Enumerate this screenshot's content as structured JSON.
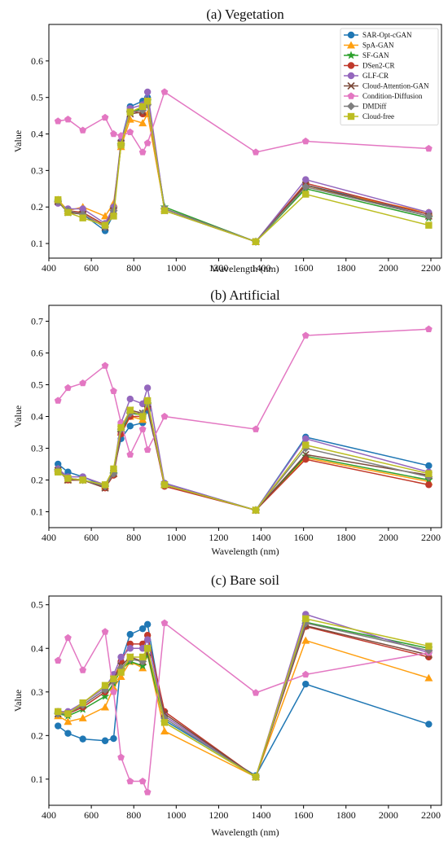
{
  "legend": [
    {
      "name": "SAR-Opt-cGAN",
      "color": "#1f77b4",
      "marker": "circle"
    },
    {
      "name": "SpA-GAN",
      "color": "#ff9f10",
      "marker": "triangle"
    },
    {
      "name": "SF-GAN",
      "color": "#2ca02c",
      "marker": "star"
    },
    {
      "name": "DSen2-CR",
      "color": "#c0392b",
      "marker": "circle"
    },
    {
      "name": "GLF-CR",
      "color": "#9467bd",
      "marker": "circle"
    },
    {
      "name": "Cloud-Attention-GAN",
      "color": "#7b4a3a",
      "marker": "x"
    },
    {
      "name": "Condition-Diffusion",
      "color": "#e377c2",
      "marker": "pentagon"
    },
    {
      "name": "DMDiff",
      "color": "#7f7f7f",
      "marker": "diamond"
    },
    {
      "name": "Cloud-free",
      "color": "#bcbd22",
      "marker": "square"
    }
  ],
  "chart_data": [
    {
      "type": "line",
      "title": "(a) Vegetation",
      "xlabel": "Wavelength (nm)",
      "ylabel": "Value",
      "xlim": [
        400,
        2250
      ],
      "ylim": [
        0.06,
        0.7
      ],
      "xticks": [
        400,
        600,
        800,
        1000,
        1200,
        1400,
        1600,
        1800,
        2000,
        2200
      ],
      "yticks": [
        0.1,
        0.2,
        0.3,
        0.4,
        0.5,
        0.6
      ],
      "ytick_labels": [
        "0.1",
        "0.2",
        "0.3",
        "0.4",
        "0.5",
        "0.6"
      ],
      "legend_position": "upper right",
      "x": [
        443,
        490,
        560,
        665,
        705,
        740,
        783,
        842,
        865,
        945,
        1375,
        1610,
        2190
      ],
      "series": [
        {
          "name": "SAR-Opt-cGAN",
          "values": [
            0.215,
            0.19,
            0.18,
            0.135,
            0.18,
            0.38,
            0.475,
            0.49,
            0.5,
            0.195,
            0.105,
            0.26,
            0.18
          ]
        },
        {
          "name": "SpA-GAN",
          "values": [
            0.22,
            0.19,
            0.2,
            0.175,
            0.21,
            0.365,
            0.44,
            0.43,
            0.455,
            0.195,
            0.105,
            0.255,
            0.185
          ]
        },
        {
          "name": "SF-GAN",
          "values": [
            0.215,
            0.185,
            0.185,
            0.15,
            0.195,
            0.37,
            0.46,
            0.47,
            0.49,
            0.2,
            0.105,
            0.25,
            0.17
          ]
        },
        {
          "name": "DSen2-CR",
          "values": [
            0.215,
            0.19,
            0.185,
            0.15,
            0.195,
            0.375,
            0.465,
            0.455,
            0.48,
            0.195,
            0.105,
            0.265,
            0.18
          ]
        },
        {
          "name": "GLF-CR",
          "values": [
            0.21,
            0.195,
            0.195,
            0.155,
            0.2,
            0.38,
            0.47,
            0.48,
            0.515,
            0.195,
            0.105,
            0.275,
            0.185
          ]
        },
        {
          "name": "Cloud-Attention-GAN",
          "values": [
            0.215,
            0.185,
            0.18,
            0.145,
            0.19,
            0.375,
            0.455,
            0.46,
            0.49,
            0.19,
            0.105,
            0.26,
            0.175
          ]
        },
        {
          "name": "Condition-Diffusion",
          "values": [
            0.435,
            0.44,
            0.41,
            0.445,
            0.4,
            0.395,
            0.405,
            0.35,
            0.375,
            0.515,
            0.35,
            0.38,
            0.36
          ]
        },
        {
          "name": "DMDiff",
          "values": [
            0.215,
            0.19,
            0.18,
            0.145,
            0.19,
            0.37,
            0.46,
            0.465,
            0.48,
            0.195,
            0.105,
            0.255,
            0.175
          ]
        },
        {
          "name": "Cloud-free",
          "values": [
            0.22,
            0.185,
            0.17,
            0.15,
            0.175,
            0.37,
            0.46,
            0.475,
            0.49,
            0.19,
            0.105,
            0.235,
            0.15
          ]
        }
      ]
    },
    {
      "type": "line",
      "title": "(b) Artificial",
      "xlabel": "Wavelength (nm)",
      "ylabel": "Value",
      "xlim": [
        400,
        2250
      ],
      "ylim": [
        0.05,
        0.75
      ],
      "xticks": [
        400,
        600,
        800,
        1000,
        1200,
        1400,
        1600,
        1800,
        2000,
        2200
      ],
      "yticks": [
        0.1,
        0.2,
        0.3,
        0.4,
        0.5,
        0.6,
        0.7
      ],
      "ytick_labels": [
        "0.1",
        "0.2",
        "0.3",
        "0.4",
        "0.5",
        "0.6",
        "0.7"
      ],
      "x": [
        443,
        490,
        560,
        665,
        705,
        740,
        783,
        842,
        865,
        945,
        1375,
        1610,
        2190
      ],
      "series": [
        {
          "name": "SAR-Opt-cGAN",
          "values": [
            0.25,
            0.225,
            0.21,
            0.18,
            0.23,
            0.33,
            0.37,
            0.38,
            0.42,
            0.19,
            0.105,
            0.335,
            0.245
          ]
        },
        {
          "name": "SpA-GAN",
          "values": [
            0.235,
            0.2,
            0.2,
            0.18,
            0.22,
            0.35,
            0.4,
            0.39,
            0.45,
            0.185,
            0.105,
            0.27,
            0.195
          ]
        },
        {
          "name": "SF-GAN",
          "values": [
            0.23,
            0.205,
            0.2,
            0.18,
            0.22,
            0.35,
            0.41,
            0.405,
            0.44,
            0.185,
            0.105,
            0.275,
            0.2
          ]
        },
        {
          "name": "DSen2-CR",
          "values": [
            0.23,
            0.2,
            0.2,
            0.175,
            0.215,
            0.345,
            0.4,
            0.4,
            0.43,
            0.18,
            0.105,
            0.265,
            0.185
          ]
        },
        {
          "name": "GLF-CR",
          "values": [
            0.235,
            0.21,
            0.21,
            0.185,
            0.23,
            0.38,
            0.455,
            0.44,
            0.49,
            0.19,
            0.105,
            0.33,
            0.225
          ]
        },
        {
          "name": "Cloud-Attention-GAN",
          "values": [
            0.23,
            0.2,
            0.2,
            0.175,
            0.22,
            0.36,
            0.42,
            0.41,
            0.44,
            0.185,
            0.105,
            0.28,
            0.215
          ]
        },
        {
          "name": "Condition-Diffusion",
          "values": [
            0.45,
            0.49,
            0.505,
            0.56,
            0.48,
            0.38,
            0.28,
            0.36,
            0.295,
            0.4,
            0.36,
            0.655,
            0.675
          ]
        },
        {
          "name": "DMDiff",
          "values": [
            0.23,
            0.205,
            0.2,
            0.18,
            0.22,
            0.36,
            0.41,
            0.41,
            0.44,
            0.185,
            0.105,
            0.3,
            0.21
          ]
        },
        {
          "name": "Cloud-free",
          "values": [
            0.225,
            0.205,
            0.2,
            0.185,
            0.235,
            0.365,
            0.42,
            0.4,
            0.45,
            0.185,
            0.105,
            0.31,
            0.22
          ]
        }
      ]
    },
    {
      "type": "line",
      "title": "(c) Bare soil",
      "xlabel": "Wavelength (nm)",
      "ylabel": "Value",
      "xlim": [
        400,
        2250
      ],
      "ylim": [
        0.04,
        0.52
      ],
      "xticks": [
        400,
        600,
        800,
        1000,
        1200,
        1400,
        1600,
        1800,
        2000,
        2200
      ],
      "yticks": [
        0.1,
        0.2,
        0.3,
        0.4,
        0.5
      ],
      "ytick_labels": [
        "0.1",
        "0.2",
        "0.3",
        "0.4",
        "0.5"
      ],
      "x": [
        443,
        490,
        560,
        665,
        705,
        740,
        783,
        842,
        865,
        945,
        1375,
        1610,
        2190
      ],
      "series": [
        {
          "name": "SAR-Opt-cGAN",
          "values": [
            0.222,
            0.205,
            0.192,
            0.188,
            0.193,
            0.37,
            0.432,
            0.445,
            0.455,
            0.235,
            0.108,
            0.318,
            0.226
          ]
        },
        {
          "name": "SpA-GAN",
          "values": [
            0.245,
            0.232,
            0.24,
            0.265,
            0.31,
            0.335,
            0.37,
            0.355,
            0.385,
            0.21,
            0.105,
            0.418,
            0.332
          ]
        },
        {
          "name": "SF-GAN",
          "values": [
            0.25,
            0.245,
            0.26,
            0.29,
            0.32,
            0.35,
            0.37,
            0.36,
            0.385,
            0.23,
            0.105,
            0.46,
            0.4
          ]
        },
        {
          "name": "DSen2-CR",
          "values": [
            0.255,
            0.25,
            0.265,
            0.3,
            0.33,
            0.37,
            0.41,
            0.41,
            0.43,
            0.255,
            0.105,
            0.45,
            0.38
          ]
        },
        {
          "name": "GLF-CR",
          "values": [
            0.255,
            0.255,
            0.275,
            0.31,
            0.34,
            0.38,
            0.4,
            0.4,
            0.42,
            0.245,
            0.105,
            0.478,
            0.39
          ]
        },
        {
          "name": "Cloud-Attention-GAN",
          "values": [
            0.25,
            0.25,
            0.27,
            0.305,
            0.33,
            0.36,
            0.38,
            0.37,
            0.39,
            0.25,
            0.105,
            0.452,
            0.385
          ]
        },
        {
          "name": "Condition-Diffusion",
          "values": [
            0.372,
            0.424,
            0.35,
            0.438,
            0.3,
            0.15,
            0.095,
            0.095,
            0.07,
            0.458,
            0.298,
            0.34,
            0.39
          ]
        },
        {
          "name": "DMDiff",
          "values": [
            0.25,
            0.25,
            0.27,
            0.305,
            0.325,
            0.355,
            0.375,
            0.37,
            0.4,
            0.24,
            0.105,
            0.458,
            0.395
          ]
        },
        {
          "name": "Cloud-free",
          "values": [
            0.255,
            0.25,
            0.275,
            0.315,
            0.33,
            0.345,
            0.38,
            0.38,
            0.4,
            0.23,
            0.105,
            0.468,
            0.405
          ]
        }
      ]
    }
  ]
}
